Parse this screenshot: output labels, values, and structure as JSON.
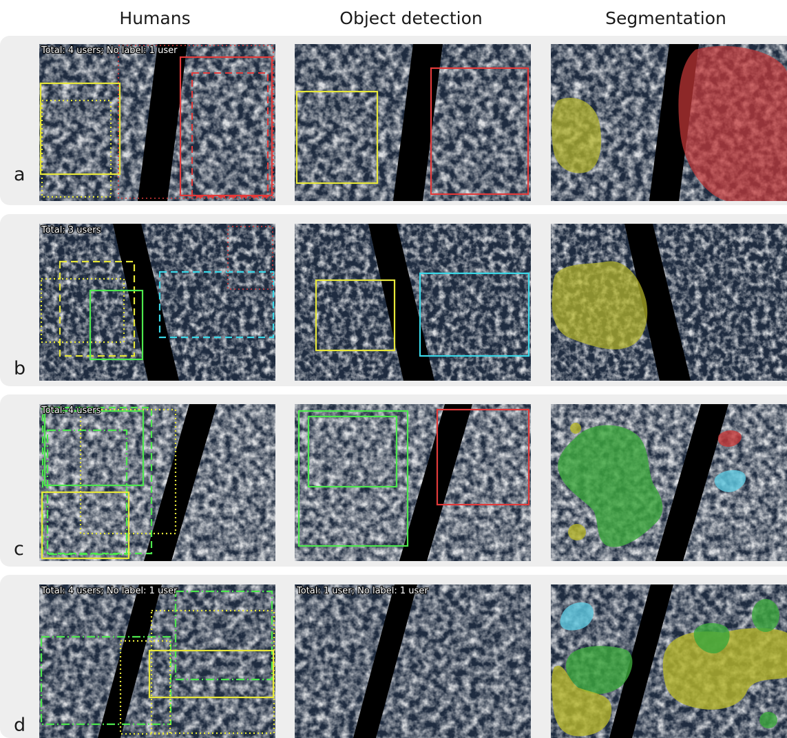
{
  "columns": [
    {
      "label": "Humans"
    },
    {
      "label": "Object detection"
    },
    {
      "label": "Segmentation"
    }
  ],
  "rows": [
    {
      "letter": "a",
      "humans_caption": "Total: 4 users; No label: 1 user",
      "detection_caption": ""
    },
    {
      "letter": "b",
      "humans_caption": "Total: 3 users",
      "detection_caption": ""
    },
    {
      "letter": "c",
      "humans_caption": "Total: 4 users",
      "detection_caption": ""
    },
    {
      "letter": "d",
      "humans_caption": "Total: 4 users; No label: 1 user",
      "detection_caption": "Total: 1 user; No label: 1 user"
    }
  ],
  "colors": {
    "yellow": "#e8e83a",
    "red": "#e23a3a",
    "green": "#4ee84e",
    "cyan": "#3ad8e8",
    "band": "#eeeeee",
    "ocean": "#1f2c40"
  },
  "icons": [
    "satellite-image",
    "bounding-box",
    "segmentation-mask",
    "swath-gap"
  ]
}
